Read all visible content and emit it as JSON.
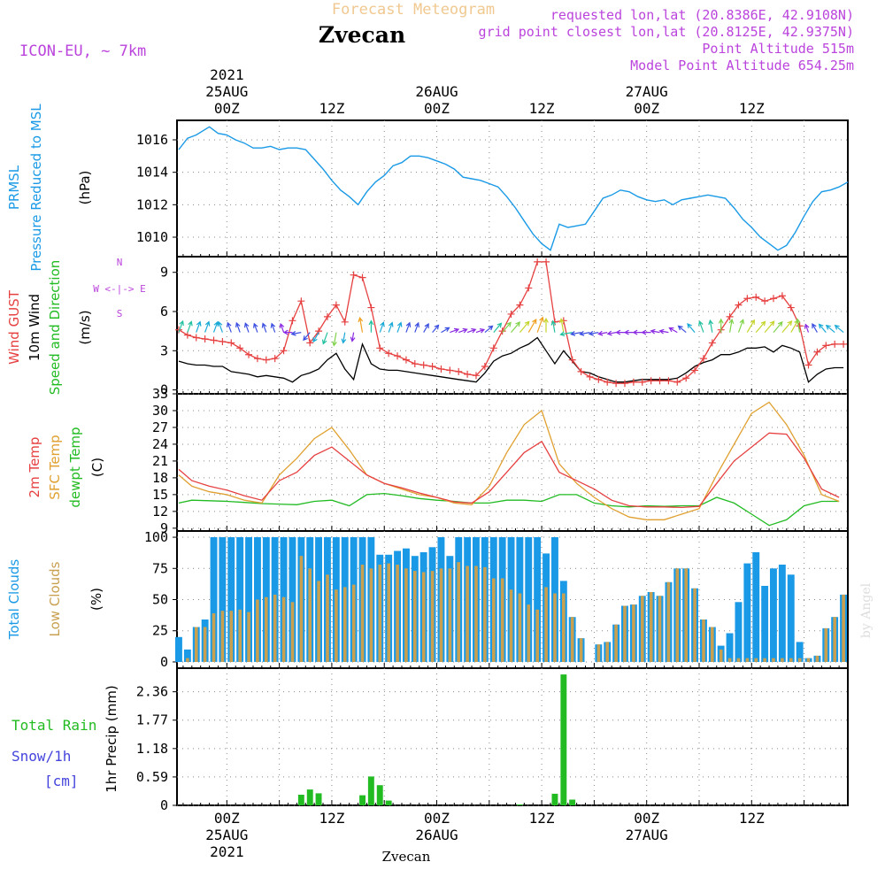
{
  "header": {
    "forecast_label": "Forecast Meteogram",
    "location": "Zvecan",
    "model": "ICON-EU, ~ 7km",
    "requested": "requested lon,lat (20.8386E, 42.9108N)",
    "grid_point": "grid point closest lon,lat (20.8125E, 42.9375N)",
    "point_altitude": "Point Altitude 515m",
    "model_altitude": "Model Point Altitude 654.25m",
    "credit": "by Angel",
    "footer_location": "Zvecan"
  },
  "time_axis": {
    "top_labels": [
      {
        "hour": 0,
        "lines": [
          "2021",
          "25AUG",
          "00Z"
        ]
      },
      {
        "hour": 12,
        "lines": [
          "12Z"
        ]
      },
      {
        "hour": 24,
        "lines": [
          "26AUG",
          "00Z"
        ]
      },
      {
        "hour": 36,
        "lines": [
          "12Z"
        ]
      },
      {
        "hour": 48,
        "lines": [
          "27AUG",
          "00Z"
        ]
      },
      {
        "hour": 60,
        "lines": [
          "12Z"
        ]
      }
    ],
    "bottom_labels": [
      {
        "hour": 0,
        "lines": [
          "00Z",
          "25AUG",
          "2021"
        ]
      },
      {
        "hour": 12,
        "lines": [
          "12Z"
        ]
      },
      {
        "hour": 24,
        "lines": [
          "00Z",
          "26AUG"
        ]
      },
      {
        "hour": 36,
        "lines": [
          "12Z"
        ]
      },
      {
        "hour": 48,
        "lines": [
          "00Z",
          "27AUG"
        ]
      },
      {
        "hour": 60,
        "lines": [
          "12Z"
        ]
      }
    ],
    "start_hour": -5.7,
    "end_hour": 71
  },
  "colors": {
    "pressure": "#1a9ae6",
    "gust": "#e64040",
    "wind": "#000000",
    "dir_label": "#22bb22",
    "temp2m": "#e64040",
    "sfc": "#e0a030",
    "dewpt": "#22bb22",
    "total_clouds": "#1a9ae6",
    "low_clouds": "#c8a050",
    "rain": "#22bb22",
    "snow": "#4444dd",
    "magenta": "#bb44dd",
    "forecast_title": "#f0c890",
    "grid": "#888888"
  },
  "chart_data": [
    {
      "type": "line",
      "name": "pressure",
      "title_lines": [
        "PRMSL",
        "Pressure Reduced to MSL"
      ],
      "units": "(hPa)",
      "ylim": [
        1008.8,
        1017.2
      ],
      "yticks": [
        1010,
        1012,
        1014,
        1016
      ],
      "x": [
        -5.5,
        -4.5,
        -3.5,
        -2,
        -1,
        0,
        1,
        2,
        3,
        4,
        5,
        6,
        7,
        8,
        9,
        10,
        11,
        12,
        13,
        14,
        15,
        16,
        17,
        18,
        19,
        20,
        21,
        22,
        23,
        24,
        25,
        26,
        27,
        28,
        29,
        30,
        31,
        32,
        33,
        34,
        35,
        36,
        37,
        38,
        39,
        40,
        41,
        42,
        43,
        44,
        45,
        46,
        47,
        48,
        49,
        50,
        51,
        52,
        53,
        54,
        55,
        56,
        57,
        58,
        59,
        60,
        61,
        62,
        63,
        64,
        65,
        66,
        67,
        68,
        69,
        70,
        71
      ],
      "values": [
        1015.4,
        1016.1,
        1016.3,
        1016.8,
        1016.4,
        1016.3,
        1016.0,
        1015.8,
        1015.5,
        1015.5,
        1015.6,
        1015.4,
        1015.5,
        1015.5,
        1015.4,
        1014.8,
        1014.2,
        1013.5,
        1012.9,
        1012.5,
        1012.0,
        1012.8,
        1013.4,
        1013.8,
        1014.4,
        1014.6,
        1015.0,
        1015.0,
        1014.9,
        1014.7,
        1014.5,
        1014.2,
        1013.7,
        1013.6,
        1013.5,
        1013.3,
        1013.1,
        1012.5,
        1011.8,
        1011.0,
        1010.2,
        1009.6,
        1009.2,
        1010.8,
        1010.6,
        1010.7,
        1010.8,
        1011.6,
        1012.4,
        1012.6,
        1012.9,
        1012.8,
        1012.5,
        1012.3,
        1012.2,
        1012.3,
        1012.0,
        1012.3,
        1012.4,
        1012.5,
        1012.6,
        1012.5,
        1012.4,
        1011.8,
        1011.1,
        1010.6,
        1010.0,
        1009.6,
        1009.2,
        1009.5,
        1010.3,
        1011.3,
        1012.2,
        1012.8,
        1012.9,
        1013.1,
        1013.4
      ]
    },
    {
      "type": "line",
      "name": "wind",
      "title_lines": [
        "Wind GUST",
        "10m Wind",
        "Speed and Direction"
      ],
      "units": "(m/s)",
      "compass": [
        "N",
        "W <-|-> E",
        "S"
      ],
      "ylim": [
        -0.3,
        10.2
      ],
      "yticks": [
        0,
        3,
        6,
        9
      ],
      "x": [
        -5.5,
        -4.5,
        -3.5,
        -2.5,
        -1.5,
        -0.5,
        0.5,
        1.5,
        2.5,
        3.5,
        4.5,
        5.5,
        6.5,
        7.5,
        8.5,
        9.5,
        10.5,
        11.5,
        12.5,
        13.5,
        14.5,
        15.5,
        16.5,
        17.5,
        18.5,
        19.5,
        20.5,
        21.5,
        22.5,
        23.5,
        24.5,
        25.5,
        26.5,
        27.5,
        28.5,
        29.5,
        30.5,
        31.5,
        32.5,
        33.5,
        34.5,
        35.5,
        36.5,
        37.5,
        38.5,
        39.5,
        40.5,
        41.5,
        42.5,
        43.5,
        44.5,
        45.5,
        46.5,
        47.5,
        48.5,
        49.5,
        50.5,
        51.5,
        52.5,
        53.5,
        54.5,
        55.5,
        56.5,
        57.5,
        58.5,
        59.5,
        60.5,
        61.5,
        62.5,
        63.5,
        64.5,
        65.5,
        66.5,
        67.5,
        68.5,
        69.5,
        70.5
      ],
      "gust": [
        4.6,
        4.2,
        4.0,
        3.9,
        3.8,
        3.7,
        3.6,
        3.2,
        2.7,
        2.4,
        2.3,
        2.4,
        3.0,
        5.3,
        6.8,
        3.6,
        4.5,
        5.6,
        6.5,
        5.2,
        8.8,
        8.6,
        6.3,
        3.2,
        2.8,
        2.6,
        2.3,
        2.0,
        1.9,
        1.8,
        1.6,
        1.5,
        1.4,
        1.2,
        1.1,
        1.8,
        3.2,
        4.5,
        5.8,
        6.5,
        7.8,
        9.8,
        9.8,
        5.2,
        5.3,
        2.3,
        1.4,
        1.0,
        0.8,
        0.6,
        0.5,
        0.5,
        0.6,
        0.6,
        0.7,
        0.7,
        0.7,
        0.6,
        0.9,
        1.5,
        2.4,
        3.6,
        4.6,
        5.6,
        6.5,
        7.0,
        7.1,
        6.8,
        7.0,
        7.2,
        6.3,
        4.9,
        1.9,
        2.9,
        3.4,
        3.5,
        3.5
      ],
      "speed": [
        2.2,
        2.0,
        1.9,
        1.9,
        1.8,
        1.8,
        1.4,
        1.3,
        1.2,
        1.0,
        1.1,
        1.0,
        0.9,
        0.6,
        1.1,
        1.3,
        1.6,
        2.3,
        2.8,
        1.6,
        0.8,
        3.5,
        2.0,
        1.6,
        1.5,
        1.5,
        1.4,
        1.3,
        1.2,
        1.1,
        1.0,
        0.9,
        0.8,
        0.7,
        0.6,
        1.3,
        2.2,
        2.6,
        2.8,
        3.2,
        3.5,
        4.0,
        3.0,
        2.0,
        3.0,
        2.2,
        1.4,
        1.3,
        1.0,
        0.8,
        0.6,
        0.6,
        0.7,
        0.8,
        0.8,
        0.8,
        0.8,
        0.9,
        1.3,
        1.8,
        2.1,
        2.3,
        2.7,
        2.7,
        2.9,
        3.2,
        3.2,
        3.3,
        2.9,
        3.4,
        3.2,
        2.9,
        0.6,
        1.2,
        1.6,
        1.7,
        1.7
      ],
      "direction_deg": [
        200,
        200,
        200,
        200,
        200,
        160,
        160,
        160,
        160,
        160,
        160,
        160,
        160,
        90,
        80,
        40,
        30,
        20,
        10,
        10,
        10,
        170,
        180,
        200,
        200,
        200,
        200,
        200,
        210,
        220,
        240,
        250,
        250,
        250,
        250,
        230,
        220,
        220,
        220,
        220,
        210,
        200,
        180,
        170,
        170,
        80,
        80,
        80,
        80,
        80,
        80,
        90,
        90,
        90,
        90,
        100,
        100,
        120,
        130,
        140,
        160,
        170,
        180,
        190,
        200,
        210,
        220,
        220,
        220,
        220,
        210,
        170,
        160,
        150,
        140,
        130,
        130
      ]
    },
    {
      "type": "line",
      "name": "temperature",
      "title_lines": [
        "2m Temp",
        "SFC Temp",
        "dewpt Temp"
      ],
      "units": "(C)",
      "ylim": [
        8.5,
        33
      ],
      "yticks": [
        9,
        12,
        15,
        18,
        21,
        24,
        27,
        30,
        33
      ],
      "x": [
        -5.5,
        -4,
        -2,
        0,
        2,
        4,
        6,
        8,
        10,
        12,
        14,
        16,
        18,
        20,
        22,
        24,
        26,
        28,
        30,
        32,
        34,
        36,
        38,
        40,
        42,
        44,
        46,
        48,
        50,
        52,
        54,
        56,
        58,
        60,
        62,
        64,
        66,
        68,
        70
      ],
      "temp2m": [
        19.5,
        17.5,
        16.5,
        15.8,
        14.8,
        14.0,
        17.5,
        19.0,
        22.0,
        23.5,
        21.0,
        18.5,
        17.0,
        16.2,
        15.3,
        14.5,
        13.7,
        13.5,
        15.5,
        19.0,
        22.5,
        24.5,
        19.0,
        17.5,
        16.0,
        14.0,
        13.0,
        12.8,
        12.8,
        12.7,
        12.9,
        17.0,
        21.0,
        23.5,
        26.0,
        25.8,
        21.5,
        16.0,
        14.5
      ],
      "sfc": [
        18.5,
        16.5,
        15.5,
        15.0,
        14.0,
        13.5,
        18.5,
        21.5,
        25.0,
        27.0,
        23.0,
        18.5,
        17.0,
        16.0,
        15.0,
        14.5,
        13.5,
        13.2,
        16.5,
        22.5,
        27.5,
        30.0,
        20.5,
        17.0,
        14.5,
        12.5,
        11.0,
        10.5,
        10.5,
        11.5,
        12.5,
        18.5,
        24.0,
        29.5,
        31.5,
        27.5,
        22.0,
        15.0,
        13.8
      ],
      "dewpt": [
        13.5,
        14.0,
        13.9,
        13.8,
        13.6,
        13.4,
        13.3,
        13.2,
        13.8,
        14.0,
        13.0,
        15.0,
        15.2,
        14.8,
        14.3,
        14.0,
        13.8,
        13.5,
        13.5,
        14.0,
        14.0,
        13.8,
        15.0,
        15.0,
        13.5,
        13.0,
        12.8,
        13.0,
        12.9,
        13.0,
        13.0,
        14.5,
        13.5,
        11.5,
        9.5,
        10.5,
        13.0,
        13.8,
        13.8
      ]
    },
    {
      "type": "bar",
      "name": "clouds",
      "title_lines": [
        "Total Clouds",
        "Low Clouds"
      ],
      "units": "(%)",
      "ylim": [
        -5,
        105
      ],
      "yticks": [
        0,
        25,
        50,
        75,
        100
      ],
      "x": [
        -5.5,
        -4.5,
        -3.5,
        -2.5,
        -1.5,
        -0.5,
        0.5,
        1.5,
        2.5,
        3.5,
        4.5,
        5.5,
        6.5,
        7.5,
        8.5,
        9.5,
        10.5,
        11.5,
        12.5,
        13.5,
        14.5,
        15.5,
        16.5,
        17.5,
        18.5,
        19.5,
        20.5,
        21.5,
        22.5,
        23.5,
        24.5,
        25.5,
        26.5,
        27.5,
        28.5,
        29.5,
        30.5,
        31.5,
        32.5,
        33.5,
        34.5,
        35.5,
        36.5,
        37.5,
        38.5,
        39.5,
        40.5,
        41.5,
        42.5,
        43.5,
        44.5,
        45.5,
        46.5,
        47.5,
        48.5,
        49.5,
        50.5,
        51.5,
        52.5,
        53.5,
        54.5,
        55.5,
        56.5,
        57.5,
        58.5,
        59.5,
        60.5,
        61.5,
        62.5,
        63.5,
        64.5,
        65.5,
        66.5,
        67.5,
        68.5,
        69.5,
        70.5
      ],
      "total": [
        20,
        10,
        28,
        34,
        100,
        100,
        100,
        100,
        100,
        100,
        100,
        100,
        100,
        100,
        100,
        100,
        100,
        100,
        100,
        100,
        100,
        100,
        100,
        86,
        86,
        89,
        91,
        85,
        88,
        92,
        100,
        85,
        100,
        100,
        100,
        100,
        100,
        100,
        100,
        100,
        100,
        100,
        87,
        100,
        65,
        36,
        19,
        0,
        14,
        16,
        30,
        45,
        46,
        53,
        56,
        53,
        64,
        75,
        75,
        59,
        34,
        28,
        13,
        23,
        48,
        79,
        88,
        61,
        75,
        78,
        70,
        16,
        3,
        5,
        27,
        36,
        54
      ],
      "low": [
        0,
        3,
        28,
        28,
        39,
        41,
        41,
        42,
        40,
        50,
        52,
        54,
        52,
        48,
        85,
        75,
        65,
        70,
        58,
        60,
        62,
        78,
        75,
        78,
        79,
        78,
        75,
        73,
        72,
        73,
        75,
        75,
        80,
        77,
        77,
        76,
        67,
        67,
        58,
        55,
        46,
        42,
        60,
        55,
        55,
        36,
        19,
        0,
        14,
        16,
        30,
        45,
        46,
        53,
        56,
        53,
        64,
        75,
        75,
        59,
        34,
        28,
        10,
        3,
        3,
        3,
        3,
        3,
        3,
        3,
        3,
        3,
        3,
        5,
        27,
        36,
        54
      ]
    },
    {
      "type": "bar",
      "name": "precipitation",
      "title_lines": [
        "Total  Rain",
        "Snow/1h",
        "[cm]"
      ],
      "units": "1hr Precip (mm)",
      "ylim": [
        0,
        2.85
      ],
      "yticks": [
        0,
        0.59,
        1.18,
        1.77,
        2.36
      ],
      "ytick_labels": [
        "0",
        "0.59",
        "1.18",
        "1.77",
        "2.36"
      ],
      "x": [
        8.5,
        9.5,
        10.5,
        15.5,
        16.5,
        17.5,
        18.5,
        33.5,
        37.5,
        38.5,
        39.5
      ],
      "rain": [
        0.22,
        0.33,
        0.25,
        0.21,
        0.6,
        0.42,
        0.1,
        0.02,
        0.24,
        2.72,
        0.12
      ]
    }
  ]
}
